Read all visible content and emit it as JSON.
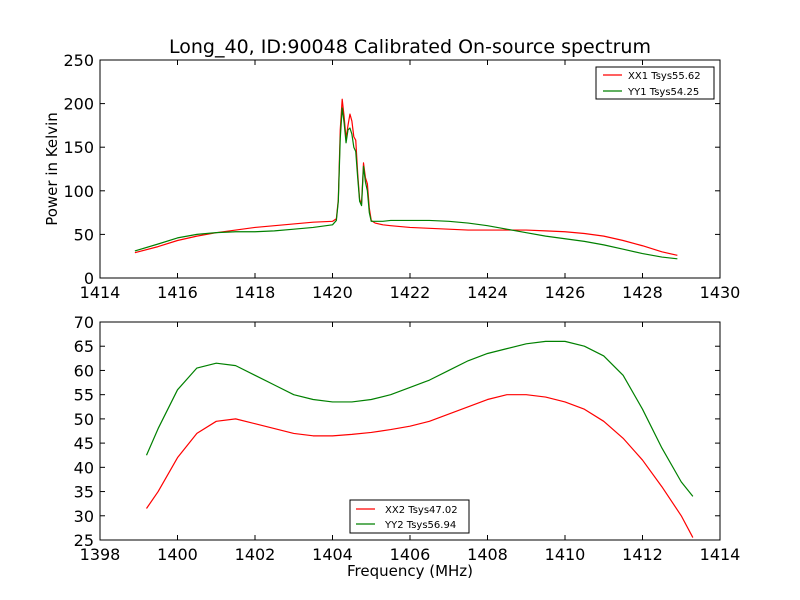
{
  "title": "Long_40, ID:90048 Calibrated On-source spectrum",
  "chart_data": [
    {
      "type": "line",
      "ylabel": "Power in Kelvin",
      "xlabel": "",
      "xlim": [
        1414,
        1430
      ],
      "ylim": [
        0,
        250
      ],
      "xticks": [
        "1414",
        "1416",
        "1418",
        "1420",
        "1422",
        "1424",
        "1426",
        "1428",
        "1430"
      ],
      "yticks": [
        "0",
        "50",
        "100",
        "150",
        "200",
        "250"
      ],
      "legend": "top-right",
      "grid": false,
      "series": [
        {
          "name": "XX1 Tsys55.62",
          "color": "#ff0000",
          "x": [
            1414.9,
            1415.5,
            1416,
            1416.5,
            1417,
            1417.5,
            1418,
            1418.5,
            1419,
            1419.5,
            1420,
            1420.1,
            1420.15,
            1420.2,
            1420.25,
            1420.3,
            1420.35,
            1420.4,
            1420.45,
            1420.5,
            1420.55,
            1420.6,
            1420.65,
            1420.7,
            1420.75,
            1420.8,
            1420.85,
            1420.9,
            1420.95,
            1421.0,
            1421.1,
            1421.3,
            1421.5,
            1422,
            1422.5,
            1423,
            1423.5,
            1424,
            1424.5,
            1425,
            1425.5,
            1426,
            1426.5,
            1427,
            1427.5,
            1428,
            1428.5,
            1428.9
          ],
          "y": [
            29,
            36,
            43,
            48,
            52,
            55,
            58,
            60,
            62,
            64,
            65,
            68,
            90,
            170,
            205,
            185,
            160,
            175,
            188,
            180,
            162,
            158,
            120,
            90,
            85,
            132,
            115,
            108,
            80,
            66,
            63,
            61,
            60,
            58,
            57,
            56,
            55,
            55,
            55,
            55,
            54,
            53,
            51,
            48,
            43,
            37,
            30,
            26
          ]
        },
        {
          "name": "YY1 Tsys54.25",
          "color": "#008000",
          "x": [
            1414.9,
            1415.5,
            1416,
            1416.5,
            1417,
            1417.5,
            1418,
            1418.5,
            1419,
            1419.5,
            1420,
            1420.1,
            1420.15,
            1420.2,
            1420.25,
            1420.3,
            1420.35,
            1420.4,
            1420.45,
            1420.5,
            1420.55,
            1420.6,
            1420.65,
            1420.7,
            1420.75,
            1420.8,
            1420.85,
            1420.9,
            1420.95,
            1421.0,
            1421.1,
            1421.3,
            1421.5,
            1422,
            1422.5,
            1423,
            1423.5,
            1424,
            1424.5,
            1425,
            1425.5,
            1426,
            1426.5,
            1427,
            1427.5,
            1428,
            1428.5,
            1428.9
          ],
          "y": [
            31,
            39,
            46,
            50,
            52,
            53,
            53,
            54,
            56,
            58,
            61,
            66,
            88,
            160,
            195,
            178,
            155,
            170,
            172,
            165,
            150,
            145,
            115,
            88,
            83,
            128,
            110,
            100,
            75,
            65,
            65,
            65,
            66,
            66,
            66,
            65,
            63,
            60,
            56,
            52,
            48,
            45,
            42,
            38,
            33,
            28,
            24,
            22
          ]
        }
      ]
    },
    {
      "type": "line",
      "ylabel": "",
      "xlabel": "Frequency (MHz)",
      "xlim": [
        1398,
        1414
      ],
      "ylim": [
        25,
        70
      ],
      "xticks": [
        "1398",
        "1400",
        "1402",
        "1404",
        "1406",
        "1408",
        "1410",
        "1412",
        "1414"
      ],
      "yticks": [
        "25",
        "30",
        "35",
        "40",
        "45",
        "50",
        "55",
        "60",
        "65",
        "70"
      ],
      "legend": "bottom-center",
      "grid": false,
      "series": [
        {
          "name": "XX2 Tsys47.02",
          "color": "#ff0000",
          "x": [
            1399.2,
            1399.5,
            1400,
            1400.5,
            1401,
            1401.5,
            1402,
            1402.5,
            1403,
            1403.5,
            1404,
            1404.5,
            1405,
            1405.5,
            1406,
            1406.5,
            1407,
            1407.5,
            1408,
            1408.5,
            1409,
            1409.5,
            1410,
            1410.5,
            1411,
            1411.5,
            1412,
            1412.5,
            1413,
            1413.3
          ],
          "y": [
            31.5,
            35,
            42,
            47,
            49.5,
            50,
            49,
            48,
            47,
            46.5,
            46.5,
            46.8,
            47.2,
            47.8,
            48.5,
            49.5,
            51,
            52.5,
            54,
            55,
            55,
            54.5,
            53.5,
            52,
            49.5,
            46,
            41.5,
            36,
            30,
            25.5
          ]
        },
        {
          "name": "YY2 Tsys56.94",
          "color": "#008000",
          "x": [
            1399.2,
            1399.5,
            1400,
            1400.5,
            1401,
            1401.5,
            1402,
            1402.5,
            1403,
            1403.5,
            1404,
            1404.5,
            1405,
            1405.5,
            1406,
            1406.5,
            1407,
            1407.5,
            1408,
            1408.5,
            1409,
            1409.5,
            1410,
            1410.5,
            1411,
            1411.5,
            1412,
            1412.5,
            1413,
            1413.3
          ],
          "y": [
            42.5,
            48,
            56,
            60.5,
            61.5,
            61,
            59,
            57,
            55,
            54,
            53.5,
            53.5,
            54,
            55,
            56.5,
            58,
            60,
            62,
            63.5,
            64.5,
            65.5,
            66,
            66,
            65,
            63,
            59,
            52,
            44,
            37,
            34
          ]
        }
      ]
    }
  ]
}
